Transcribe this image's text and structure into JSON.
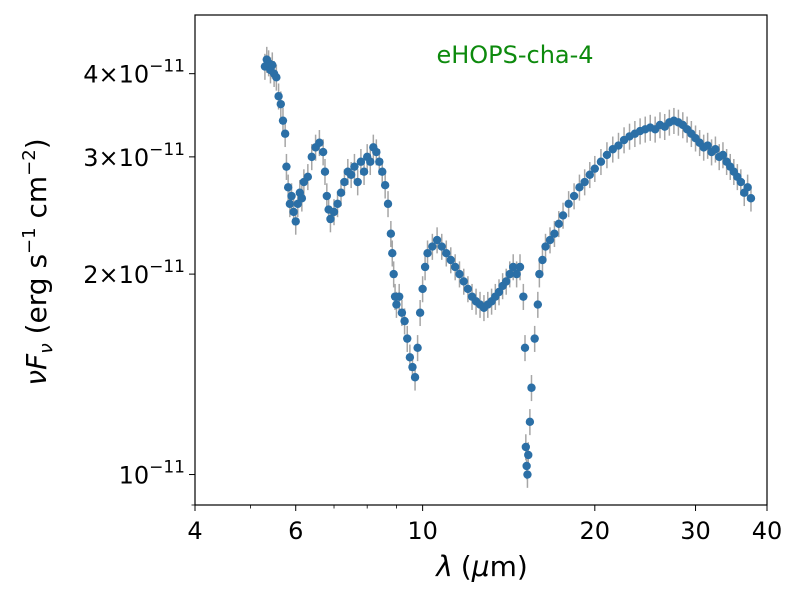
{
  "chart_data": {
    "type": "scatter",
    "annotation": "eHOPS-cha-4",
    "xscale": "log",
    "yscale": "log",
    "xlim": [
      4,
      40
    ],
    "ylim": [
      9e-12,
      4.9e-11
    ],
    "x_ticks": [
      {
        "value": 4,
        "label": "4"
      },
      {
        "value": 6,
        "label": "6"
      },
      {
        "value": 10,
        "label": "10"
      },
      {
        "value": 20,
        "label": "20"
      },
      {
        "value": 30,
        "label": "30"
      },
      {
        "value": 40,
        "label": "40"
      }
    ],
    "y_ticks": [
      {
        "value": 1e-11,
        "mant": "",
        "exp": "−11"
      },
      {
        "value": 2e-11,
        "mant": "2",
        "exp": "−11"
      },
      {
        "value": 3e-11,
        "mant": "3",
        "exp": "−11"
      },
      {
        "value": 4e-11,
        "mant": "4",
        "exp": "−11"
      }
    ],
    "xlabel": {
      "sym": "λ",
      "unit_open": "(",
      "unit_mu": "μ",
      "unit_rest": "m)"
    },
    "ylabel": {
      "nu": "ν",
      "F": "F",
      "sub": "ν",
      "unit_a": " (erg s",
      "exp1": "−1",
      "unit_b": " cm",
      "exp2": "−2",
      "unit_c": ")"
    },
    "colors": {
      "marker": "#2b6fa6",
      "errorbar": "#a6a6a6",
      "annotation": "#0d8a0d"
    },
    "points": [
      [
        5.3,
        4.1e-11
      ],
      [
        5.34,
        4.2e-11
      ],
      [
        5.38,
        4.15e-11
      ],
      [
        5.42,
        4.05e-11
      ],
      [
        5.46,
        4.12e-11
      ],
      [
        5.5,
        4e-11
      ],
      [
        5.55,
        3.95e-11
      ],
      [
        5.6,
        3.7e-11
      ],
      [
        5.65,
        3.6e-11
      ],
      [
        5.7,
        3.4e-11
      ],
      [
        5.75,
        3.25e-11
      ],
      [
        5.78,
        2.9e-11
      ],
      [
        5.82,
        2.7e-11
      ],
      [
        5.86,
        2.55e-11
      ],
      [
        5.9,
        2.62e-11
      ],
      [
        5.95,
        2.48e-11
      ],
      [
        6.0,
        2.4e-11
      ],
      [
        6.05,
        2.55e-11
      ],
      [
        6.1,
        2.65e-11
      ],
      [
        6.15,
        2.6e-11
      ],
      [
        6.2,
        2.75e-11
      ],
      [
        6.3,
        2.8e-11
      ],
      [
        6.4,
        3e-11
      ],
      [
        6.5,
        3.1e-11
      ],
      [
        6.6,
        3.15e-11
      ],
      [
        6.7,
        3.05e-11
      ],
      [
        6.75,
        2.85e-11
      ],
      [
        6.8,
        2.62e-11
      ],
      [
        6.85,
        2.5e-11
      ],
      [
        6.9,
        2.42e-11
      ],
      [
        7.0,
        2.48e-11
      ],
      [
        7.1,
        2.55e-11
      ],
      [
        7.2,
        2.65e-11
      ],
      [
        7.3,
        2.75e-11
      ],
      [
        7.4,
        2.85e-11
      ],
      [
        7.5,
        2.82e-11
      ],
      [
        7.6,
        2.9e-11
      ],
      [
        7.7,
        2.75e-11
      ],
      [
        7.8,
        2.95e-11
      ],
      [
        7.9,
        2.85e-11
      ],
      [
        8.0,
        3e-11
      ],
      [
        8.1,
        2.95e-11
      ],
      [
        8.2,
        3.1e-11
      ],
      [
        8.3,
        3.05e-11
      ],
      [
        8.4,
        2.95e-11
      ],
      [
        8.5,
        2.85e-11
      ],
      [
        8.6,
        2.72e-11
      ],
      [
        8.7,
        2.55e-11
      ],
      [
        8.8,
        2.3e-11
      ],
      [
        8.85,
        2.15e-11
      ],
      [
        8.9,
        2e-11
      ],
      [
        8.95,
        1.85e-11
      ],
      [
        9.0,
        1.8e-11
      ],
      [
        9.1,
        1.85e-11
      ],
      [
        9.2,
        1.75e-11
      ],
      [
        9.3,
        1.7e-11
      ],
      [
        9.4,
        1.6e-11
      ],
      [
        9.5,
        1.5e-11
      ],
      [
        9.6,
        1.45e-11
      ],
      [
        9.7,
        1.4e-11
      ],
      [
        9.8,
        1.55e-11
      ],
      [
        9.9,
        1.75e-11
      ],
      [
        10.0,
        1.9e-11
      ],
      [
        10.1,
        2.05e-11
      ],
      [
        10.2,
        2.15e-11
      ],
      [
        10.4,
        2.2e-11
      ],
      [
        10.6,
        2.25e-11
      ],
      [
        10.8,
        2.2e-11
      ],
      [
        11.0,
        2.15e-11
      ],
      [
        11.2,
        2.1e-11
      ],
      [
        11.4,
        2.05e-11
      ],
      [
        11.6,
        2e-11
      ],
      [
        11.8,
        1.95e-11
      ],
      [
        12.0,
        1.9e-11
      ],
      [
        12.2,
        1.85e-11
      ],
      [
        12.4,
        1.82e-11
      ],
      [
        12.6,
        1.8e-11
      ],
      [
        12.8,
        1.78e-11
      ],
      [
        13.0,
        1.8e-11
      ],
      [
        13.2,
        1.82e-11
      ],
      [
        13.4,
        1.85e-11
      ],
      [
        13.6,
        1.88e-11
      ],
      [
        13.8,
        1.92e-11
      ],
      [
        14.0,
        1.95e-11
      ],
      [
        14.2,
        2e-11
      ],
      [
        14.4,
        2.05e-11
      ],
      [
        14.6,
        2e-11
      ],
      [
        14.8,
        2.05e-11
      ],
      [
        15.0,
        1.85e-11
      ],
      [
        15.1,
        1.55e-11
      ],
      [
        15.15,
        1.1e-11
      ],
      [
        15.2,
        1.03e-11
      ],
      [
        15.25,
        1e-11
      ],
      [
        15.3,
        1.07e-11
      ],
      [
        15.4,
        1.2e-11
      ],
      [
        15.5,
        1.35e-11
      ],
      [
        15.7,
        1.6e-11
      ],
      [
        15.9,
        1.8e-11
      ],
      [
        16.0,
        2e-11
      ],
      [
        16.2,
        2.1e-11
      ],
      [
        16.4,
        2.2e-11
      ],
      [
        16.7,
        2.25e-11
      ],
      [
        17.0,
        2.3e-11
      ],
      [
        17.3,
        2.38e-11
      ],
      [
        17.6,
        2.45e-11
      ],
      [
        18.0,
        2.55e-11
      ],
      [
        18.4,
        2.62e-11
      ],
      [
        18.8,
        2.7e-11
      ],
      [
        19.2,
        2.75e-11
      ],
      [
        19.6,
        2.82e-11
      ],
      [
        20.0,
        2.88e-11
      ],
      [
        20.5,
        2.95e-11
      ],
      [
        21.0,
        3.02e-11
      ],
      [
        21.5,
        3.08e-11
      ],
      [
        22.0,
        3.12e-11
      ],
      [
        22.5,
        3.18e-11
      ],
      [
        23.0,
        3.22e-11
      ],
      [
        23.5,
        3.25e-11
      ],
      [
        24.0,
        3.28e-11
      ],
      [
        24.5,
        3.3e-11
      ],
      [
        25.0,
        3.32e-11
      ],
      [
        25.5,
        3.3e-11
      ],
      [
        26.0,
        3.35e-11
      ],
      [
        26.5,
        3.33e-11
      ],
      [
        27.0,
        3.38e-11
      ],
      [
        27.5,
        3.4e-11
      ],
      [
        28.0,
        3.38e-11
      ],
      [
        28.5,
        3.35e-11
      ],
      [
        29.0,
        3.3e-11
      ],
      [
        29.5,
        3.25e-11
      ],
      [
        30.0,
        3.2e-11
      ],
      [
        30.5,
        3.15e-11
      ],
      [
        31.0,
        3.1e-11
      ],
      [
        31.5,
        3.12e-11
      ],
      [
        32.0,
        3.05e-11
      ],
      [
        32.5,
        3.08e-11
      ],
      [
        33.0,
        3e-11
      ],
      [
        33.5,
        3.02e-11
      ],
      [
        34.0,
        2.95e-11
      ],
      [
        34.5,
        2.9e-11
      ],
      [
        35.0,
        2.85e-11
      ],
      [
        35.5,
        2.8e-11
      ],
      [
        36.0,
        2.75e-11
      ],
      [
        36.5,
        2.65e-11
      ],
      [
        37.0,
        2.7e-11
      ],
      [
        37.5,
        2.6e-11
      ]
    ]
  }
}
